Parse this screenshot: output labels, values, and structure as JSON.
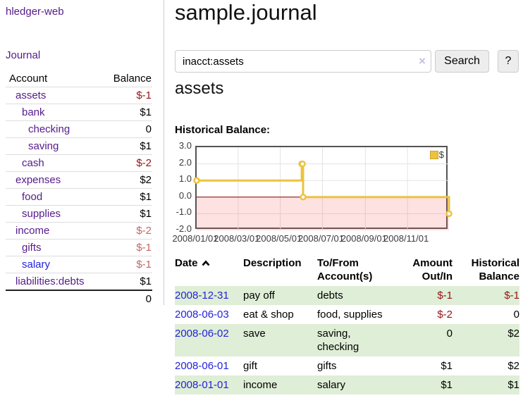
{
  "palette": {
    "link_purple": "#551a8b",
    "link_blue": "#2222dd",
    "negative_strong": "#941414",
    "negative_weak": "#c06868",
    "row_stripe_green": "#dfeed6",
    "series_gold": "#edc240"
  },
  "sidebar": {
    "app_title": "hledger-web",
    "journal_link": "Journal",
    "accounts_table": {
      "headers": {
        "account": "Account",
        "balance": "Balance"
      },
      "rows": [
        {
          "account": "assets",
          "balance": "$-1"
        },
        {
          "account": "bank",
          "balance": "$1"
        },
        {
          "account": "checking",
          "balance": "0"
        },
        {
          "account": "saving",
          "balance": "$1"
        },
        {
          "account": "cash",
          "balance": "$-2"
        },
        {
          "account": "expenses",
          "balance": "$2"
        },
        {
          "account": "food",
          "balance": "$1"
        },
        {
          "account": "supplies",
          "balance": "$1"
        },
        {
          "account": "income",
          "balance": "$-2"
        },
        {
          "account": "gifts",
          "balance": "$-1"
        },
        {
          "account": "salary",
          "balance": "$-1"
        },
        {
          "account": "liabilities:debts",
          "balance": "$1"
        }
      ],
      "total": "0"
    }
  },
  "main": {
    "title": "sample.journal",
    "search": {
      "value": "inacct:assets",
      "clear_icon": "×",
      "search_button": "Search",
      "help_button": "?"
    },
    "account_heading": "assets",
    "chart_title": "Historical Balance:"
  },
  "chart_data": {
    "type": "line",
    "step": true,
    "title": "Historical Balance:",
    "x_range": [
      "2008-01-01",
      "2008-12-31"
    ],
    "ylim": [
      -2,
      3
    ],
    "grid": true,
    "legend": {
      "position": "top-right",
      "label": "$"
    },
    "colors": {
      "negative_fill": "rgba(250,90,90,0.18)",
      "zero_line": "#8b0000",
      "gridline": "#e3e3e3"
    },
    "series": [
      {
        "name": "$",
        "color": "#edc240",
        "points": [
          {
            "x": "2008-01-01",
            "y": 1
          },
          {
            "x": "2008-06-01",
            "y": 2
          },
          {
            "x": "2008-06-02",
            "y": 2
          },
          {
            "x": "2008-06-03",
            "y": 0
          },
          {
            "x": "2008-12-31",
            "y": -1
          }
        ]
      }
    ],
    "yticks": [
      {
        "v": 3,
        "label": "3.0"
      },
      {
        "v": 2,
        "label": "2.0"
      },
      {
        "v": 1,
        "label": "1.0"
      },
      {
        "v": 0,
        "label": "0.0"
      },
      {
        "v": -1,
        "label": "-1.0"
      },
      {
        "v": -2,
        "label": "-2.0"
      }
    ],
    "xticks": [
      {
        "v": "2008-01-01",
        "label": "2008/01/01"
      },
      {
        "v": "2008-03-01",
        "label": "2008/03/01"
      },
      {
        "v": "2008-05-01",
        "label": "2008/05/01"
      },
      {
        "v": "2008-07-01",
        "label": "2008/07/01"
      },
      {
        "v": "2008-09-01",
        "label": "2008/09/01"
      },
      {
        "v": "2008-11-01",
        "label": "2008/11/01"
      }
    ]
  },
  "register_table": {
    "headers": {
      "date": "Date",
      "description": "Description",
      "accounts": "To/From Account(s)",
      "amount": "Amount Out/In",
      "balance": "Historical Balance"
    },
    "sort": "ascending",
    "rows": [
      {
        "date": "2008-12-31",
        "description": "pay off",
        "accounts": "debts",
        "amount": "$-1",
        "balance": "$-1"
      },
      {
        "date": "2008-06-03",
        "description": "eat & shop",
        "accounts": "food, supplies",
        "amount": "$-2",
        "balance": "0"
      },
      {
        "date": "2008-06-02",
        "description": "save",
        "accounts": "saving, checking",
        "amount": "0",
        "balance": "$2"
      },
      {
        "date": "2008-06-01",
        "description": "gift",
        "accounts": "gifts",
        "amount": "$1",
        "balance": "$2"
      },
      {
        "date": "2008-01-01",
        "description": "income",
        "accounts": "salary",
        "amount": "$1",
        "balance": "$1"
      }
    ]
  }
}
